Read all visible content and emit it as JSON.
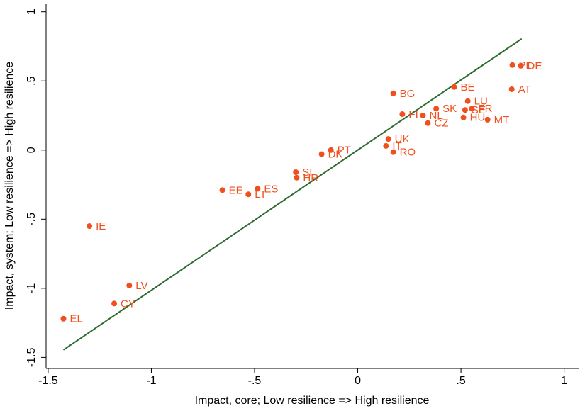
{
  "chart_data": {
    "type": "scatter",
    "x_label": "Impact, core; Low resilience => High resilience",
    "y_label": "Impact, system; Low resilience => High resilience",
    "labels": [
      "EL",
      "CY",
      "LV",
      "IE",
      "EE",
      "LT",
      "ES",
      "SI",
      "HR",
      "DK",
      "PT",
      "UK",
      "IT",
      "RO",
      "BG",
      "FI",
      "NL",
      "SK",
      "CZ",
      "BE",
      "LU",
      "SE",
      "FR",
      "HU",
      "MT",
      "AT",
      "PL",
      "DE"
    ],
    "x": [
      -1.426,
      -1.18,
      -1.107,
      -1.3,
      -0.656,
      -0.53,
      -0.485,
      -0.3,
      -0.296,
      -0.175,
      -0.13,
      0.148,
      0.137,
      0.172,
      0.172,
      0.216,
      0.316,
      0.38,
      0.34,
      0.467,
      0.533,
      0.52,
      0.553,
      0.512,
      0.629,
      0.746,
      0.749,
      0.79
    ],
    "y": [
      -1.22,
      -1.11,
      -0.98,
      -0.55,
      -0.29,
      -0.32,
      -0.28,
      -0.16,
      -0.2,
      -0.03,
      0.0,
      0.08,
      0.03,
      -0.015,
      0.41,
      0.26,
      0.25,
      0.3,
      0.195,
      0.456,
      0.354,
      0.29,
      0.3,
      0.236,
      0.22,
      0.44,
      0.615,
      0.61
    ],
    "color": "#f0501e",
    "fit_line": {
      "x": [
        -1.426,
        0.794
      ],
      "y": [
        -1.446,
        0.805
      ],
      "color": "#2e6b2e"
    },
    "xlim": [
      -1.51,
      1.07
    ],
    "ylim": [
      -1.58,
      1.06
    ],
    "xticks": [
      -1.5,
      -1,
      {
        "value": -0.5,
        "label": "-.5"
      },
      0,
      {
        "value": 0.5,
        "label": ".5"
      },
      1
    ],
    "yticks": [
      -1.5,
      -1,
      {
        "value": -0.5,
        "label": "-.5"
      },
      0,
      {
        "value": 0.5,
        "label": ".5"
      },
      1
    ]
  }
}
